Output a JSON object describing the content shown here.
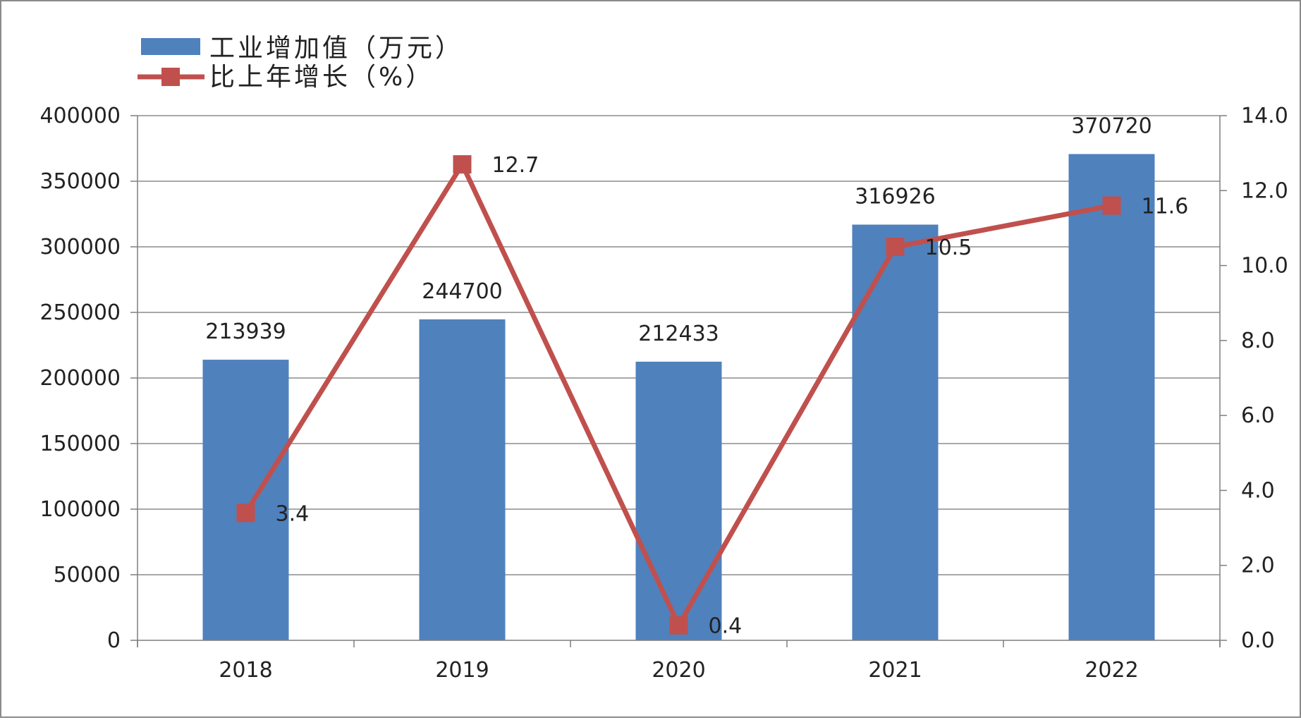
{
  "chart_data": {
    "type": "bar",
    "categories": [
      "2018",
      "2019",
      "2020",
      "2021",
      "2022"
    ],
    "series": [
      {
        "name": "工业增加值（万元）",
        "type": "bar",
        "axis": "left",
        "values": [
          213939,
          244700,
          212433,
          316926,
          370720
        ],
        "labels": [
          "213939",
          "244700",
          "212433",
          "316926",
          "370720"
        ]
      },
      {
        "name": "比上年增长（%）",
        "type": "line",
        "axis": "right",
        "values": [
          3.4,
          12.7,
          0.4,
          10.5,
          11.6
        ],
        "labels": [
          "3.4",
          "12.7",
          "0.4",
          "10.5",
          "11.6"
        ]
      }
    ],
    "y_left": {
      "ylim": [
        0,
        400000
      ],
      "ticks": [
        "0",
        "50000",
        "100000",
        "150000",
        "200000",
        "250000",
        "300000",
        "350000",
        "400000"
      ]
    },
    "y_right": {
      "ylim": [
        0,
        14
      ],
      "ticks": [
        "0.0",
        "2.0",
        "4.0",
        "6.0",
        "8.0",
        "10.0",
        "12.0",
        "14.0"
      ]
    },
    "grid": true,
    "legend": "top-left",
    "colors": {
      "bar": "#4f81bd",
      "line": "#c0504d"
    }
  }
}
